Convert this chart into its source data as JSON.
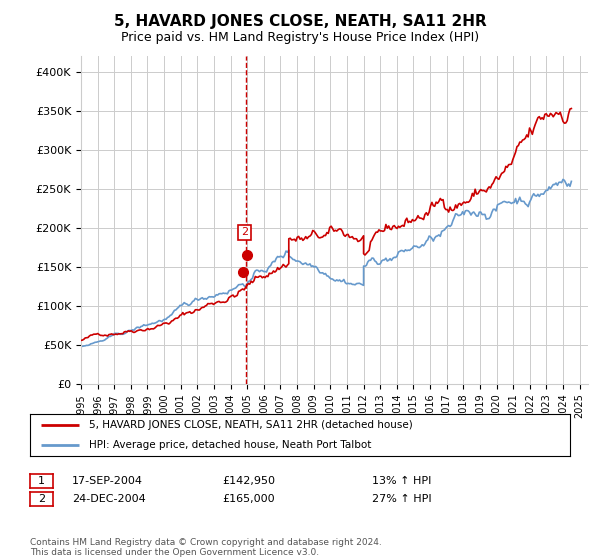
{
  "title": "5, HAVARD JONES CLOSE, NEATH, SA11 2HR",
  "subtitle": "Price paid vs. HM Land Registry's House Price Index (HPI)",
  "ylabel_ticks": [
    "£0",
    "£50K",
    "£100K",
    "£150K",
    "£200K",
    "£250K",
    "£300K",
    "£350K",
    "£400K"
  ],
  "ylim": [
    0,
    420000
  ],
  "xlim_start": 1995.0,
  "xlim_end": 2025.5,
  "legend_line1": "5, HAVARD JONES CLOSE, NEATH, SA11 2HR (detached house)",
  "legend_line2": "HPI: Average price, detached house, Neath Port Talbot",
  "transaction1_date": "17-SEP-2004",
  "transaction1_price": "£142,950",
  "transaction1_hpi": "13% ↑ HPI",
  "transaction2_date": "24-DEC-2004",
  "transaction2_price": "£165,000",
  "transaction2_hpi": "27% ↑ HPI",
  "footer": "Contains HM Land Registry data © Crown copyright and database right 2024.\nThis data is licensed under the Open Government Licence v3.0.",
  "vline_x": 2004.95,
  "marker1_x": 2004.72,
  "marker1_y": 142950,
  "marker2_x": 2004.98,
  "marker2_y": 165000,
  "red_color": "#cc0000",
  "blue_color": "#6699cc",
  "grid_color": "#cccccc",
  "background_color": "#ffffff"
}
